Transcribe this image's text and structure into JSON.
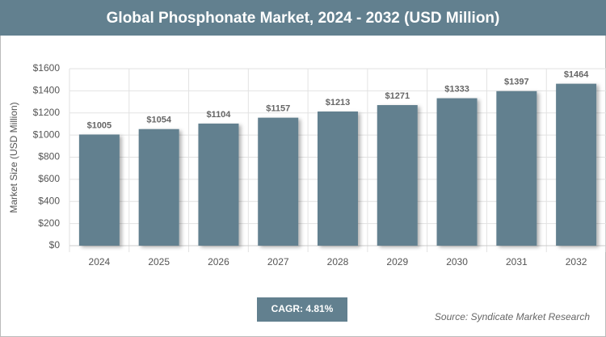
{
  "chart_data": {
    "type": "bar",
    "title": "Global Phosphonate Market, 2024 - 2032 (USD Million)",
    "y_label": "Market Size (USD Million)",
    "categories": [
      "2024",
      "2025",
      "2026",
      "2027",
      "2028",
      "2029",
      "2030",
      "2031",
      "2032"
    ],
    "values": [
      1005,
      1054,
      1104,
      1157,
      1213,
      1271,
      1333,
      1397,
      1464
    ],
    "value_labels": [
      "$1005",
      "$1054",
      "$1104",
      "$1157",
      "$1213",
      "$1271",
      "$1333",
      "$1397",
      "$1464"
    ],
    "color": "#62808f",
    "ylim": [
      0,
      1600
    ],
    "yticks": [
      {
        "value": 0,
        "label": "$0"
      },
      {
        "value": 200,
        "label": "$200"
      },
      {
        "value": 400,
        "label": "$400"
      },
      {
        "value": 600,
        "label": "$600"
      },
      {
        "value": 800,
        "label": "$800"
      },
      {
        "value": 1000,
        "label": "$1000"
      },
      {
        "value": 1200,
        "label": "$1200"
      },
      {
        "value": 1400,
        "label": "$1400"
      },
      {
        "value": 1600,
        "label": "$1600"
      }
    ],
    "grid": true,
    "annotation": "CAGR: 4.81%",
    "source": "Source: Syndicate Market Research"
  }
}
